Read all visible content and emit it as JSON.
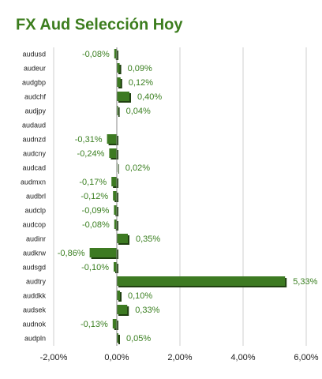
{
  "chart_data": {
    "type": "hbar",
    "title": "FX Aud Selección Hoy",
    "categories": [
      "audusd",
      "audeur",
      "audgbp",
      "audchf",
      "audjpy",
      "audaud",
      "audnzd",
      "audcny",
      "audcad",
      "audmxn",
      "audbrl",
      "audclp",
      "audcop",
      "audinr",
      "audkrw",
      "audsgd",
      "audtry",
      "auddkk",
      "audsek",
      "audnok",
      "audpln"
    ],
    "values": [
      -0.08,
      0.09,
      0.12,
      0.4,
      0.04,
      null,
      -0.31,
      -0.24,
      0.02,
      -0.17,
      -0.12,
      -0.09,
      -0.08,
      0.35,
      -0.86,
      -0.1,
      5.33,
      0.1,
      0.33,
      -0.13,
      0.05
    ],
    "value_labels": [
      "-0,08%",
      "0,09%",
      "0,12%",
      "0,40%",
      "0,04%",
      null,
      "-0,31%",
      "-0,24%",
      "0,02%",
      "-0,17%",
      "-0,12%",
      "-0,09%",
      "-0,08%",
      "0,35%",
      "-0,86%",
      "-0,10%",
      "5,33%",
      "0,10%",
      "0,33%",
      "-0,13%",
      "0,05%"
    ],
    "color": "#3d7a22",
    "xlim": [
      -2,
      6
    ],
    "xticks": [
      {
        "value": -2,
        "label": "-2,00%"
      },
      {
        "value": 0,
        "label": "0,00%"
      },
      {
        "value": 2,
        "label": "2,00%"
      },
      {
        "value": 4,
        "label": "4,00%"
      },
      {
        "value": 6,
        "label": "6,00%"
      }
    ],
    "grid": true
  }
}
